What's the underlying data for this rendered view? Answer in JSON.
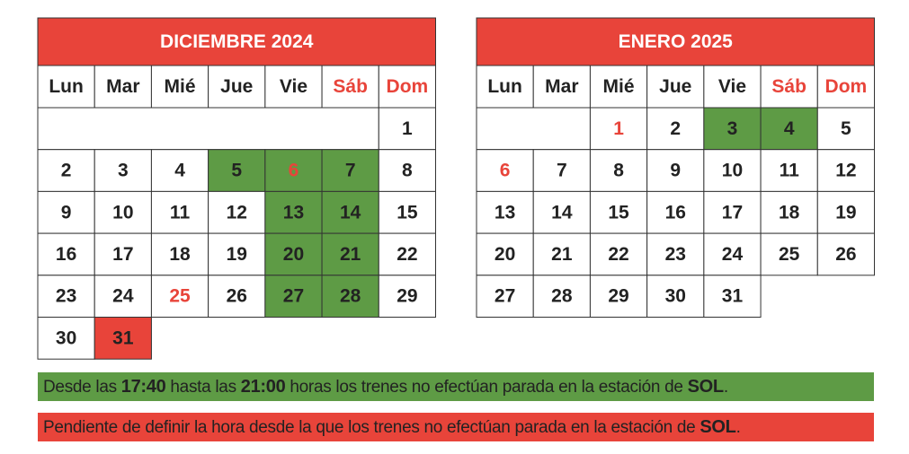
{
  "calendars": [
    {
      "title": "DICIEMBRE 2024",
      "weekdays": [
        "Lun",
        "Mar",
        "Mié",
        "Jue",
        "Vie",
        "Sáb",
        "Dom"
      ],
      "red_weekdays": [
        "Sáb",
        "Dom"
      ],
      "weeks": [
        [
          null,
          null,
          null,
          null,
          null,
          null,
          1
        ],
        [
          2,
          3,
          4,
          5,
          6,
          7,
          8
        ],
        [
          9,
          10,
          11,
          12,
          13,
          14,
          15
        ],
        [
          16,
          17,
          18,
          19,
          20,
          21,
          22
        ],
        [
          23,
          24,
          25,
          26,
          27,
          28,
          29
        ],
        [
          30,
          31,
          null,
          null,
          null,
          null,
          null
        ]
      ],
      "green_days": [
        5,
        6,
        7,
        13,
        14,
        20,
        21,
        27,
        28
      ],
      "red_bg_days": [
        31
      ],
      "red_text_days": [
        6,
        25
      ]
    },
    {
      "title": "ENERO 2025",
      "weekdays": [
        "Lun",
        "Mar",
        "Mié",
        "Jue",
        "Vie",
        "Sáb",
        "Dom"
      ],
      "red_weekdays": [
        "Sáb",
        "Dom"
      ],
      "weeks": [
        [
          null,
          null,
          1,
          2,
          3,
          4,
          5
        ],
        [
          6,
          7,
          8,
          9,
          10,
          11,
          12
        ],
        [
          13,
          14,
          15,
          16,
          17,
          18,
          19
        ],
        [
          20,
          21,
          22,
          23,
          24,
          25,
          26
        ],
        [
          27,
          28,
          29,
          30,
          31,
          null,
          null
        ]
      ],
      "green_days": [
        3,
        4
      ],
      "red_bg_days": [],
      "red_text_days": [
        1,
        6
      ]
    }
  ],
  "legend": [
    {
      "color": "#5e9b45",
      "segments": [
        {
          "text": "Desde las "
        },
        {
          "text": "17:40",
          "bold": true
        },
        {
          "text": " hasta las "
        },
        {
          "text": "21:00",
          "bold": true
        },
        {
          "text": " horas los trenes no efectúan parada en la estación de "
        },
        {
          "text": "SOL",
          "bold": true
        },
        {
          "text": "."
        }
      ]
    },
    {
      "color": "#e8443a",
      "segments": [
        {
          "text": "Pendiente de definir la hora desde la que los trenes no efectúan parada en la estación de "
        },
        {
          "text": "SOL",
          "bold": true
        },
        {
          "text": "."
        }
      ]
    }
  ]
}
